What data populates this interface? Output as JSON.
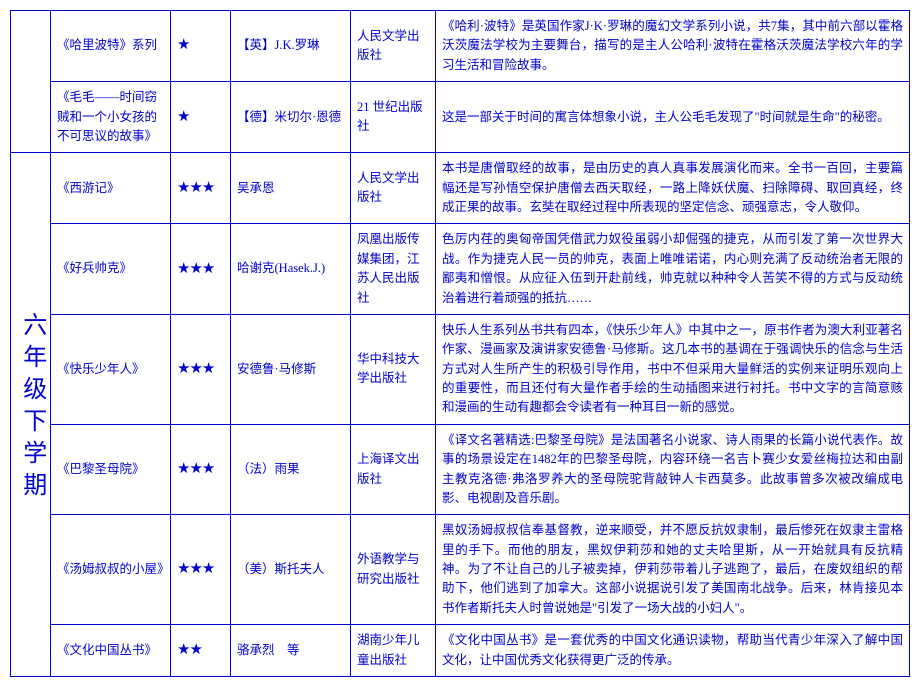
{
  "grade_label": "六年级下学期",
  "colors": {
    "ink": "#0000cc",
    "bg": "#ffffff"
  },
  "top_rows": [
    {
      "title": "《哈里波特》系列",
      "star": "★",
      "author": "【英】J.K.罗琳",
      "publisher": "人民文学出版社",
      "desc": "《哈利·波特》是英国作家J·K·罗琳的魔幻文学系列小说，共7集，其中前六部以霍格沃茨魔法学校为主要舞台，描写的是主人公哈利·波特在霍格沃茨魔法学校六年的学习生活和冒险故事。"
    },
    {
      "title": "《毛毛——时间窃贼和一个小女孩的不可思议的故事》",
      "star": "★",
      "author": "【德】米切尔·恩德",
      "publisher": "21 世纪出版社",
      "desc": "这是一部关于时间的寓言体想象小说，主人公毛毛发现了\"时间就是生命\"的秘密。"
    }
  ],
  "grade_rows": [
    {
      "title": "《西游记》",
      "star": "★★★",
      "author": "吴承恩",
      "publisher": "人民文学出版社",
      "desc": "本书是唐僧取经的故事，是由历史的真人真事发展演化而来。全书一百回，主要篇幅还是写孙悟空保护唐僧去西天取经，一路上降妖伏魔、扫除障碍、取回真经，终成正果的故事。玄奘在取经过程中所表现的坚定信念、顽强意志，令人敬仰。"
    },
    {
      "title": "《好兵帅克》",
      "star": "★★★",
      "author": "哈谢克(Hasek.J.)",
      "publisher": "凤凰出版传媒集团，江苏人民出版社",
      "desc": "色厉内荏的奥匈帝国凭借武力奴役虽弱小却倔强的捷克，从而引发了第一次世界大战。作为捷克人民一员的帅克，表面上唯唯诺诺，内心则充满了反动统治者无限的鄙夷和憎恨。从应征入伍到开赴前线，帅克就以种种令人苦笑不得的方式与反动统治着进行着顽强的抵抗……"
    },
    {
      "title": "《快乐少年人》",
      "star": "★★★",
      "author": "安德鲁·马修斯",
      "publisher": "华中科技大学出版社",
      "desc": "快乐人生系列丛书共有四本，《快乐少年人》中其中之一，原书作者为澳大利亚著名作家、漫画家及演讲家安德鲁·马修斯。这几本书的基调在于强调快乐的信念与生活方式对人生所产生的积极引导作用，书中不但采用大量鲜活的实例来证明乐观向上的重要性，而且还付有大量作者手绘的生动插图来进行衬托。书中文字的言简意赅和漫画的生动有趣都会令读者有一种耳目一新的感觉。"
    },
    {
      "title": "《巴黎圣母院》",
      "star": "★★★",
      "author": "（法）雨果",
      "publisher": "上海译文出版社",
      "desc": "《译文名著精选:巴黎圣母院》是法国著名小说家、诗人雨果的长篇小说代表作。故事的场景设定在1482年的巴黎圣母院，内容环绕一名吉卜赛少女爱丝梅拉达和由副主教克洛德·弗洛罗养大的圣母院驼背敲钟人卡西莫多。此故事曾多次被改编成电影、电视剧及音乐剧。"
    },
    {
      "title": "《汤姆叔叔的小屋》",
      "star": "★★★",
      "author": "（美）斯托夫人",
      "publisher": "外语教学与研究出版社",
      "desc": "黑奴汤姆叔叔信奉基督教，逆来顺受，并不愿反抗奴隶制，最后惨死在奴隶主雷格里的手下。而他的朋友，黑奴伊莉莎和她的丈夫哈里斯，从一开始就具有反抗精神。为了不让自己的儿子被卖掉，伊莉莎带着儿子逃跑了，最后，在废奴组织的帮助下，他们逃到了加拿大。这部小说据说引发了美国南北战争。后来，林肯接见本书作者斯托夫人时曾说她是\"引发了一场大战的小妇人\"。"
    },
    {
      "title": "《文化中国丛书》",
      "star": "★★",
      "author": "骆承烈　等",
      "publisher": "湖南少年儿童出版社",
      "desc": "《文化中国丛书》是一套优秀的中国文化通识读物，帮助当代青少年深入了解中国文化，让中国优秀文化获得更广泛的传承。"
    }
  ]
}
